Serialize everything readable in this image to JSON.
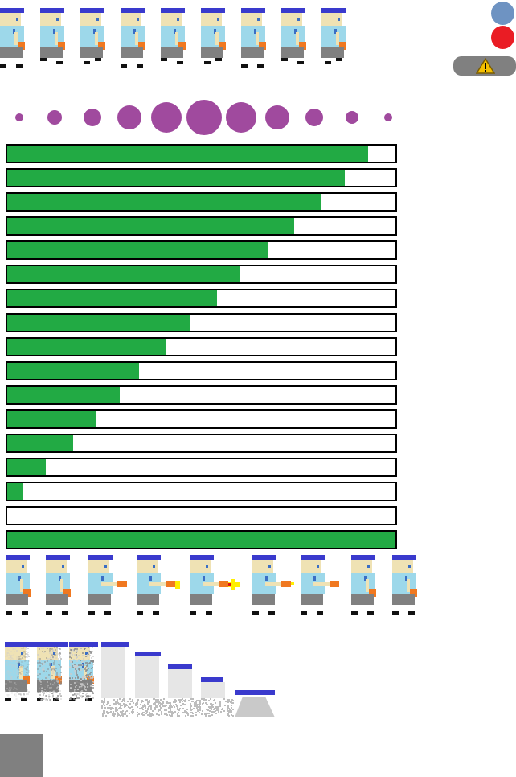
{
  "colors": {
    "green": "#22aa44",
    "purple": "#a04a9e",
    "blue_dot": "#6e93c2",
    "red_dot": "#ea1c24",
    "pill": "#808080",
    "warning": "#f5c000",
    "cap": "#3a3acd",
    "skin": "#efe2b4",
    "shirt": "#9dd8ea",
    "pants": "#808080",
    "hand": "#f07820",
    "shoe": "#111111",
    "tile": "#808080"
  },
  "icons": {
    "blue_dot": "blue-circle-icon",
    "red_dot": "red-circle-icon",
    "warning": "warning-triangle-icon"
  },
  "walk_frames": 9,
  "dot_sizes": [
    5,
    9,
    11,
    15,
    19,
    22,
    19,
    15,
    11,
    8,
    5
  ],
  "health_levels": [
    0.93,
    0.87,
    0.81,
    0.74,
    0.67,
    0.6,
    0.54,
    0.47,
    0.41,
    0.34,
    0.29,
    0.23,
    0.17,
    0.1,
    0.04,
    0.0,
    1.0
  ],
  "shoot_frames": [
    {
      "gun": false,
      "flash": 0
    },
    {
      "gun": false,
      "flash": 0
    },
    {
      "gun": true,
      "flash": 0
    },
    {
      "gun": true,
      "flash": 1
    },
    {
      "gun": true,
      "flash": 2
    },
    {
      "gun": true,
      "flash": 3
    },
    {
      "gun": true,
      "flash": 0
    },
    {
      "gun": false,
      "flash": 0
    },
    {
      "gun": false,
      "flash": 0
    }
  ],
  "dissolve_levels": [
    0.2,
    0.45,
    0.7,
    0.85,
    0.9,
    0.93,
    0.95,
    0.97
  ]
}
